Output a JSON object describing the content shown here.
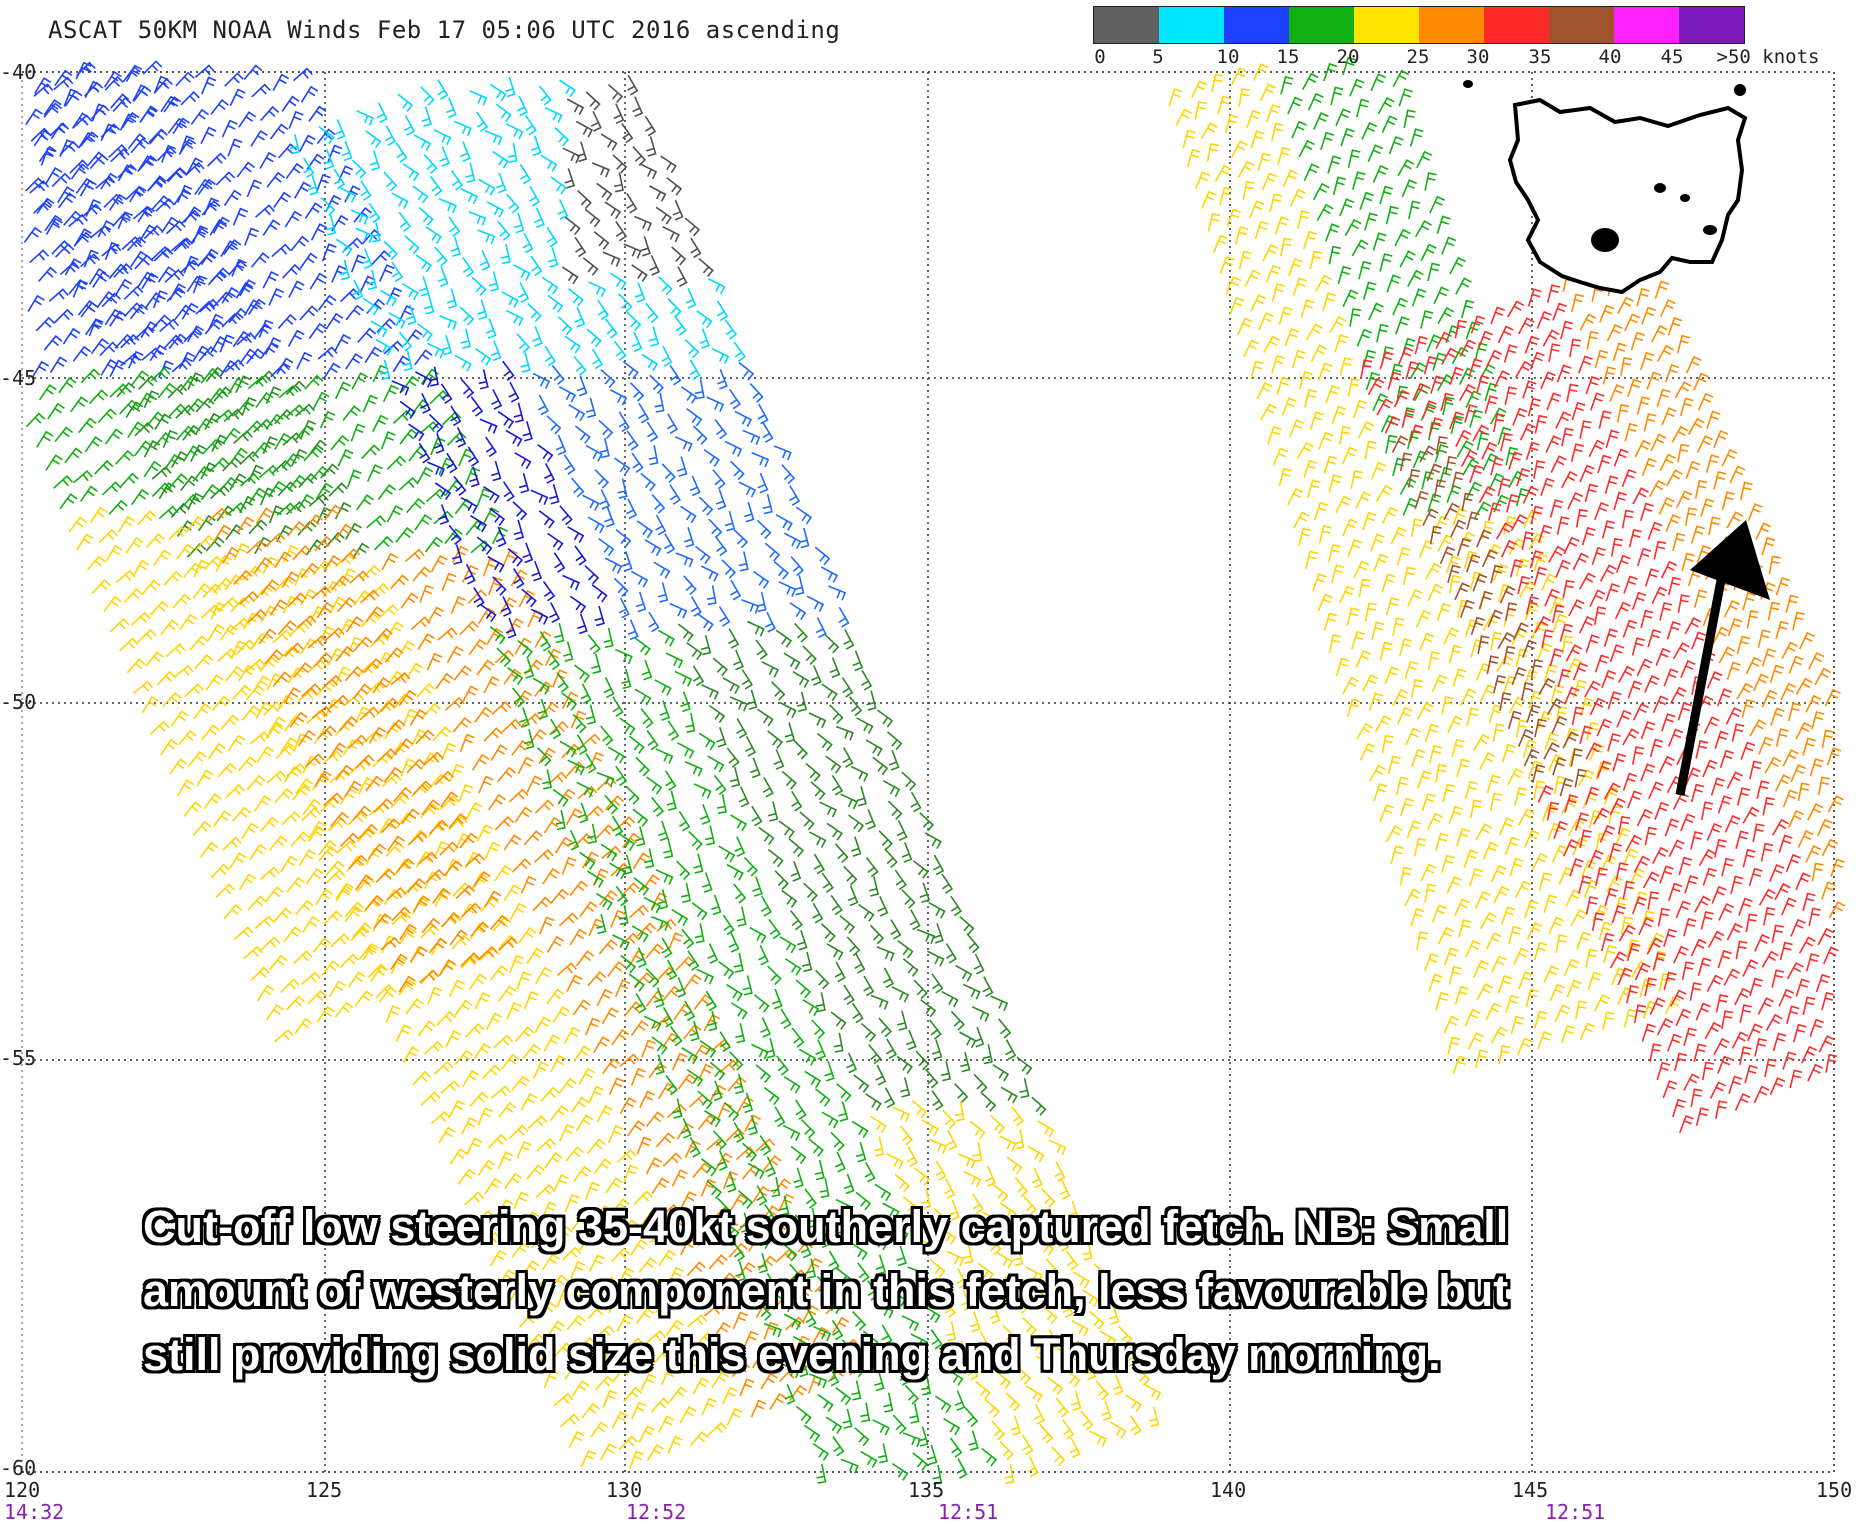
{
  "title": "ASCAT 50KM NOAA Winds Feb 17 05:06 UTC 2016 ascending",
  "legend": {
    "colors": [
      "#606060",
      "#00e8ff",
      "#1e6cff",
      "#1818d8",
      "#10b010",
      "#2a8a22",
      "#ffe600",
      "#ffb000",
      "#ff7000",
      "#ff2a2a",
      "#e01848",
      "#a0522d",
      "#ff20ff",
      "#8a1ab8"
    ],
    "labels": [
      "0",
      "5",
      "10",
      "15",
      "20",
      "25",
      "30",
      "35",
      "40",
      "45",
      ">50 knots"
    ]
  },
  "axes": {
    "lat_labels": [
      "-40",
      "-45",
      "-50",
      "-55",
      "-60"
    ],
    "lon_labels": [
      "120",
      "125",
      "130",
      "135",
      "140",
      "145",
      "150"
    ],
    "pass_times": [
      "14:32",
      "12:52",
      "12:51",
      "12:51"
    ]
  },
  "caption": {
    "line1": "Cut-off low steering 35-40kt southerly captured fetch. NB: Small",
    "line2": "amount of westerly component in this fetch, less favourable but",
    "line3": "still providing solid size this evening and Thursday morning."
  },
  "map": {
    "region": "Tasmania",
    "arrow": "arrow pointing to 35-40kt southerly fetch"
  }
}
